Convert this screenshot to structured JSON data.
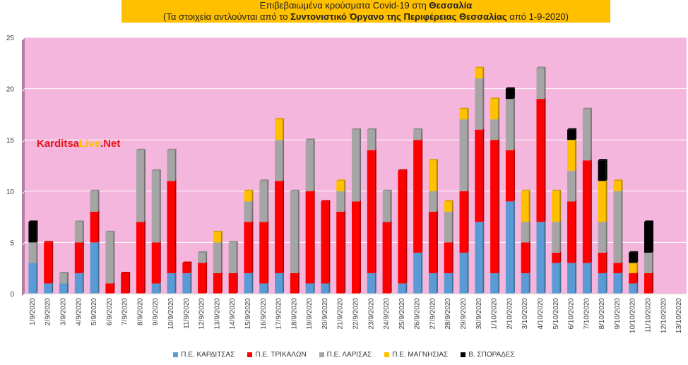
{
  "title": {
    "line1_prefix": "Επιβεβαιωμένα κρούσματα Covid-19 στη ",
    "line1_bold": "Θεσσαλία",
    "line2_prefix": "(Τα στοιχεία αντλούνται από το ",
    "line2_bold": "Συντονιστικό Όργανο της Περιφέρειας Θεσσαλίας",
    "line2_suffix": " από 1-9-2020)"
  },
  "watermark": {
    "part1": "Karditsa",
    "part2": "Live",
    "part3": ".Net",
    "color1": "#e8141b",
    "color2": "#ffc000"
  },
  "colors": {
    "plot_bg": "#f4b6dc",
    "left_wall": "#b07fa2",
    "gridline": "#ffffff"
  },
  "chart_data": {
    "type": "bar",
    "stacked": true,
    "title": "Επιβεβαιωμένα κρούσματα Covid-19 στη Θεσσαλία",
    "ylim": [
      0,
      25
    ],
    "yticks": [
      0,
      5,
      10,
      15,
      20,
      25
    ],
    "grid": true,
    "legend_position": "bottom",
    "categories": [
      "1/9/2020",
      "2/9/2020",
      "3/9/2020",
      "4/9/2020",
      "5/9/2020",
      "6/9/2020",
      "7/9/2020",
      "8/9/2020",
      "9/9/2020",
      "10/9/2020",
      "11/9/2020",
      "12/9/2020",
      "13/9/2020",
      "14/9/2020",
      "15/9/2020",
      "16/9/2020",
      "17/9/2020",
      "18/9/2020",
      "19/9/2020",
      "20/9/2020",
      "21/9/2020",
      "22/9/2020",
      "23/9/2020",
      "24/9/2020",
      "25/9/2020",
      "26/9/2020",
      "27/9/2020",
      "28/9/2020",
      "29/9/2020",
      "30/9/2020",
      "1/10/2020",
      "2/10/2020",
      "3/10/2020",
      "4/10/2020",
      "5/10/2020",
      "6/10/2020",
      "7/10/2020",
      "8/10/2020",
      "9/10/2020",
      "10/10/2020",
      "11/10/2020",
      "12/10/2020",
      "13/10/2020"
    ],
    "series": [
      {
        "name": "Π.Ε. ΚΑΡΔΙΤΣΑΣ",
        "color": "#5b9bd5",
        "values": [
          3,
          1,
          1,
          2,
          5,
          0,
          0,
          0,
          1,
          2,
          2,
          0,
          0,
          0,
          2,
          1,
          2,
          0,
          1,
          1,
          0,
          0,
          2,
          0,
          1,
          4,
          2,
          2,
          4,
          7,
          2,
          9,
          2,
          7,
          3,
          3,
          3,
          2,
          2,
          1,
          0,
          0,
          0
        ]
      },
      {
        "name": "Π.Ε. ΤΡΙΚΑΛΩΝ",
        "color": "#ff0000",
        "values": [
          0,
          4,
          0,
          3,
          3,
          1,
          2,
          7,
          4,
          9,
          1,
          3,
          2,
          2,
          5,
          6,
          9,
          2,
          9,
          8,
          8,
          9,
          12,
          7,
          11,
          11,
          6,
          3,
          6,
          9,
          13,
          5,
          3,
          12,
          1,
          6,
          10,
          2,
          1,
          1,
          2,
          0,
          0
        ]
      },
      {
        "name": "Π.Ε. ΛΑΡΙΣΑΣ",
        "color": "#a5a5a5",
        "values": [
          2,
          0,
          1,
          2,
          2,
          5,
          0,
          7,
          7,
          3,
          0,
          1,
          3,
          3,
          2,
          4,
          4,
          8,
          5,
          0,
          2,
          7,
          2,
          3,
          0,
          1,
          2,
          3,
          7,
          5,
          2,
          5,
          2,
          3,
          3,
          3,
          5,
          3,
          7,
          0,
          2,
          0,
          0
        ]
      },
      {
        "name": "Π.Ε. ΜΑΓΝΗΣΙΑΣ",
        "color": "#ffc000",
        "values": [
          0,
          0,
          0,
          0,
          0,
          0,
          0,
          0,
          0,
          0,
          0,
          0,
          1,
          0,
          1,
          0,
          2,
          0,
          0,
          0,
          1,
          0,
          0,
          0,
          0,
          0,
          3,
          1,
          1,
          1,
          2,
          0,
          3,
          0,
          3,
          3,
          0,
          4,
          1,
          1,
          0,
          0,
          0
        ]
      },
      {
        "name": "Β. ΣΠΟΡΑΔΕΣ",
        "color": "#000000",
        "values": [
          2,
          0,
          0,
          0,
          0,
          0,
          0,
          0,
          0,
          0,
          0,
          0,
          0,
          0,
          0,
          0,
          0,
          0,
          0,
          0,
          0,
          0,
          0,
          0,
          0,
          0,
          0,
          0,
          0,
          0,
          0,
          1,
          0,
          0,
          0,
          1,
          0,
          2,
          0,
          1,
          3,
          0,
          0
        ]
      }
    ]
  }
}
